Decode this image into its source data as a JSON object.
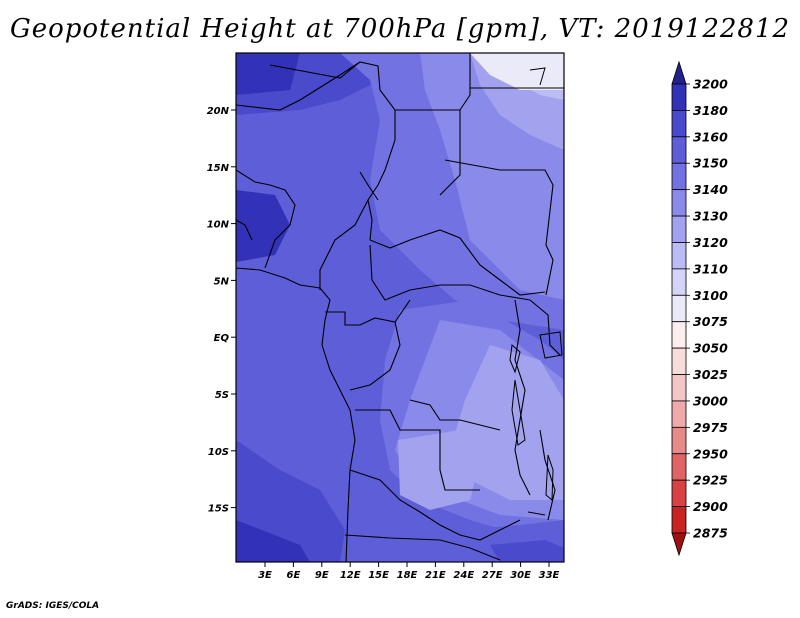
{
  "title": "Geopotential Height at 700hPa [gpm], VT: 2019122812",
  "footer": "GrADS: IGES/COLA",
  "map": {
    "lon_labels": [
      "3E",
      "6E",
      "9E",
      "12E",
      "15E",
      "18E",
      "21E",
      "24E",
      "27E",
      "30E",
      "33E"
    ],
    "lat_labels": [
      "20N",
      "15N",
      "10N",
      "5N",
      "EQ",
      "5S",
      "10S",
      "15S"
    ],
    "lon_range": [
      0,
      35
    ],
    "lat_range": [
      -20,
      24.5
    ]
  },
  "colorbar": {
    "levels": [
      "2875",
      "2900",
      "2925",
      "2950",
      "2975",
      "3000",
      "3025",
      "3050",
      "3075",
      "3100",
      "3110",
      "3120",
      "3130",
      "3140",
      "3150",
      "3160",
      "3180",
      "3200"
    ],
    "colors": [
      "#a01010",
      "#c82222",
      "#d94242",
      "#e06464",
      "#e78a8a",
      "#eeaaaa",
      "#f3c6c6",
      "#f8dcdc",
      "#fceeee",
      "#eaeaf8",
      "#d4d4f8",
      "#bcbcf5",
      "#a2a2ef",
      "#8a8aea",
      "#7272e2",
      "#5e5ed8",
      "#4a4acc",
      "#3232b8",
      "#22228e"
    ]
  },
  "chart_data": {
    "type": "heatmap",
    "title": "Geopotential Height at 700hPa [gpm], VT: 2019122812",
    "variable": "Geopotential Height at 700hPa",
    "units": "gpm",
    "valid_time": "2019122812",
    "x_range": [
      0,
      35
    ],
    "y_range": [
      -20,
      24.5
    ],
    "levels": [
      2875,
      2900,
      2925,
      2950,
      2975,
      3000,
      3025,
      3050,
      3075,
      3100,
      3110,
      3120,
      3130,
      3140,
      3150,
      3160,
      3180,
      3200
    ],
    "approx_field_range": [
      3110,
      3180
    ]
  }
}
